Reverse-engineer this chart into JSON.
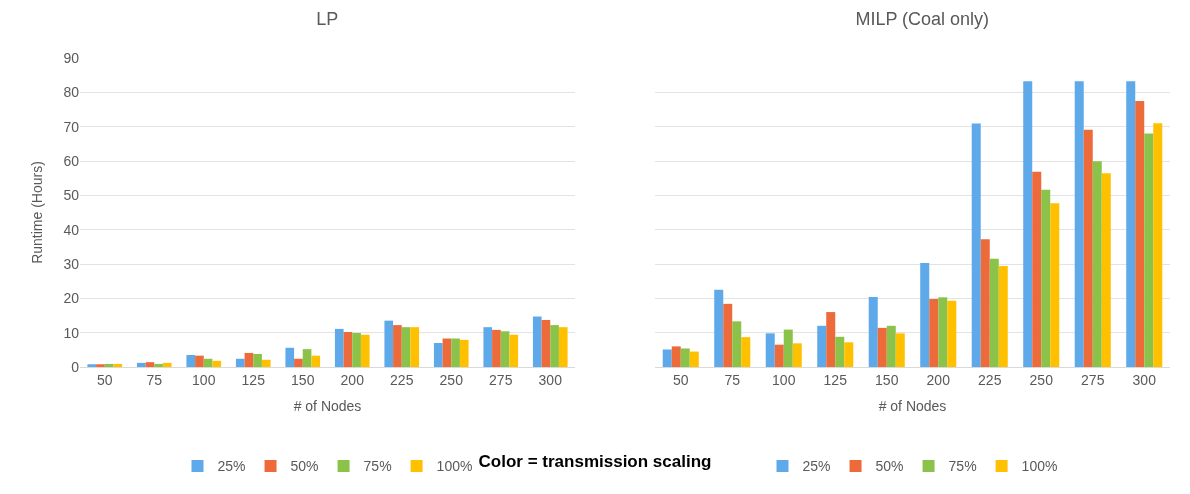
{
  "chart_data": [
    {
      "type": "bar",
      "title": "LP",
      "xlabel": "# of Nodes",
      "ylabel": "Runtime (Hours)",
      "categories": [
        "50",
        "75",
        "100",
        "125",
        "150",
        "200",
        "225",
        "250",
        "275",
        "300"
      ],
      "series": [
        {
          "name": "25%",
          "color": "#5da9e9",
          "values": [
            0.8,
            1.2,
            3.5,
            2.4,
            5.6,
            11.1,
            13.5,
            7.0,
            11.6,
            14.7
          ]
        },
        {
          "name": "50%",
          "color": "#ed6a3b",
          "values": [
            0.8,
            1.4,
            3.3,
            4.1,
            2.4,
            10.2,
            12.2,
            8.3,
            10.8,
            13.7
          ]
        },
        {
          "name": "75%",
          "color": "#8bc34a",
          "values": [
            0.9,
            0.9,
            2.4,
            3.8,
            5.2,
            9.9,
            11.6,
            8.3,
            10.4,
            12.2
          ]
        },
        {
          "name": "100%",
          "color": "#ffc000",
          "values": [
            0.9,
            1.2,
            1.8,
            2.1,
            3.3,
            9.4,
            11.6,
            7.9,
            9.4,
            11.6
          ]
        }
      ],
      "ylim": [
        0,
        90
      ],
      "yticks": [
        0,
        10,
        20,
        30,
        40,
        50,
        60,
        70,
        80,
        90
      ],
      "grid": "y",
      "legend": "bottom",
      "annotations": [
        "Color = transmission scaling"
      ]
    },
    {
      "type": "bar",
      "title": "MILP (Coal only)",
      "xlabel": "# of Nodes",
      "categories": [
        "50",
        "75",
        "100",
        "125",
        "150",
        "200",
        "225",
        "250",
        "275",
        "300"
      ],
      "series": [
        {
          "name": "25%",
          "color": "#5da9e9",
          "values": [
            5.1,
            22.5,
            9.8,
            12.0,
            20.4,
            30.3,
            70.9,
            83.2,
            83.2,
            83.2
          ]
        },
        {
          "name": "50%",
          "color": "#ed6a3b",
          "values": [
            6.0,
            18.4,
            6.5,
            16.0,
            11.4,
            19.8,
            37.2,
            56.9,
            69.1,
            77.5
          ]
        },
        {
          "name": "75%",
          "color": "#8bc34a",
          "values": [
            5.4,
            13.3,
            10.9,
            8.8,
            12.0,
            20.3,
            31.5,
            51.6,
            59.9,
            68.0
          ]
        },
        {
          "name": "100%",
          "color": "#ffc000",
          "values": [
            4.5,
            8.7,
            6.9,
            7.2,
            9.8,
            19.3,
            29.4,
            47.7,
            56.4,
            71.0
          ]
        }
      ],
      "ylim": [
        0,
        90
      ],
      "yticks": [
        0,
        10,
        20,
        30,
        40,
        50,
        60,
        70,
        80,
        90
      ],
      "grid": "y",
      "legend": "bottom",
      "tick_labels": "x"
    }
  ]
}
